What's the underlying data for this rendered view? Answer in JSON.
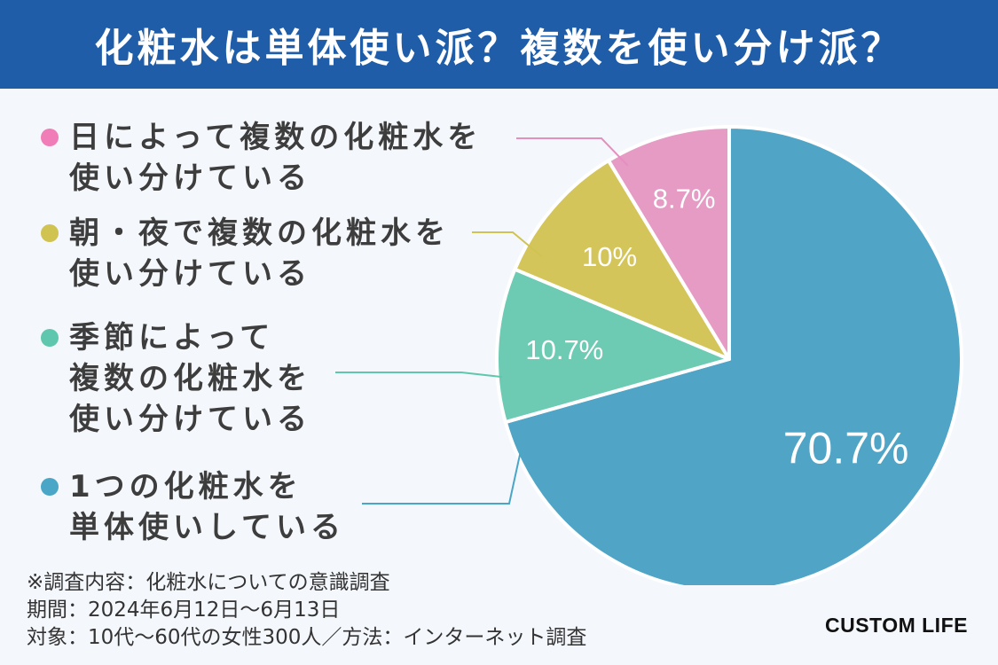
{
  "header": {
    "title": "化粧水は単体使い派？複数を使い分け派？"
  },
  "legend": [
    {
      "lines": [
        "日によって複数の化粧水を",
        "使い分けている"
      ],
      "color": "#f07db8"
    },
    {
      "lines": [
        "朝・夜で複数の化粧水を",
        "使い分けている"
      ],
      "color": "#d1c352"
    },
    {
      "lines": [
        "季節によって",
        "複数の化粧水を",
        "使い分けている"
      ],
      "color": "#5ec7ad"
    },
    {
      "lines": [
        "1つの化粧水を",
        "単体使いしている"
      ],
      "color": "#4aa6c6"
    }
  ],
  "chart_data": {
    "type": "pie",
    "categories": [
      "1つの化粧水を単体使いしている",
      "季節によって複数の化粧水を使い分けている",
      "朝・夜で複数の化粧水を使い分けている",
      "日によって複数の化粧水を使い分けている"
    ],
    "values": [
      70.7,
      10.7,
      10,
      8.7
    ],
    "labels": [
      "70.7%",
      "10.7%",
      "10%",
      "8.7%"
    ],
    "colors": [
      "#50a5c6",
      "#6dcbb3",
      "#d4c55a",
      "#e59bc4"
    ],
    "start_angle": "12 o'clock",
    "direction": "clockwise"
  },
  "notes": [
    "※調査内容：化粧水についての意識調査",
    "期間：2024年6月12日〜6月13日",
    "対象：10代〜60代の女性300人／方法：インターネット調査"
  ],
  "logo": {
    "text": "CUSTOM LIFE"
  }
}
